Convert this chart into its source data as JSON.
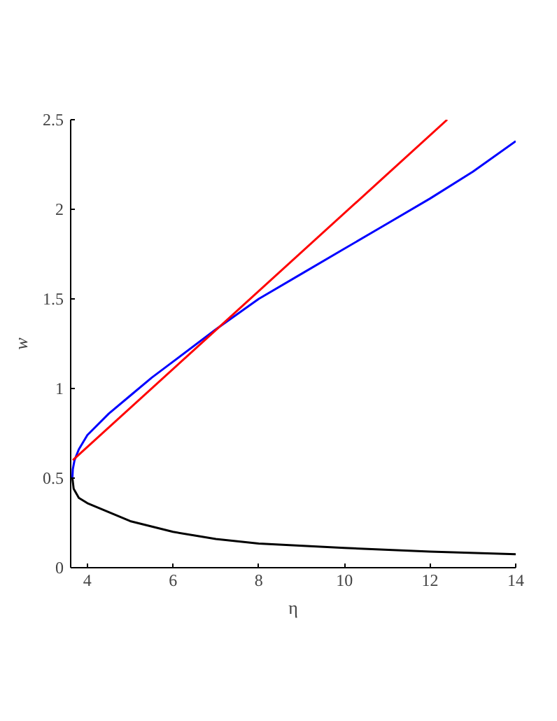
{
  "chart_data": {
    "type": "line",
    "xlabel": "η",
    "ylabel": "w",
    "xlim": [
      3.61,
      14
    ],
    "ylim": [
      0,
      2.5
    ],
    "xticks": [
      4,
      6,
      8,
      10,
      12,
      14
    ],
    "yticks": [
      0,
      0.5,
      1,
      1.5,
      2,
      2.5
    ],
    "grid": false,
    "marker": "none",
    "line_style": "solid",
    "series": [
      {
        "color": "#0000ff",
        "x": [
          3.65,
          3.66,
          3.7,
          3.8,
          4,
          4.5,
          5,
          5.5,
          6,
          7,
          8,
          9,
          10,
          11,
          12,
          13,
          14
        ],
        "values": [
          0.5,
          0.55,
          0.6,
          0.66,
          0.74,
          0.86,
          0.96,
          1.06,
          1.15,
          1.33,
          1.5,
          1.64,
          1.78,
          1.92,
          2.06,
          2.21,
          2.38
        ]
      },
      {
        "color": "#000000",
        "x": [
          3.65,
          3.68,
          3.8,
          4,
          5,
          6,
          7,
          8,
          10,
          12,
          14
        ],
        "values": [
          0.5,
          0.44,
          0.39,
          0.36,
          0.26,
          0.2,
          0.16,
          0.135,
          0.11,
          0.09,
          0.075
        ]
      },
      {
        "color": "#ff0000",
        "x": [
          3.66,
          12.4
        ],
        "values": [
          0.6,
          2.5
        ]
      }
    ]
  }
}
